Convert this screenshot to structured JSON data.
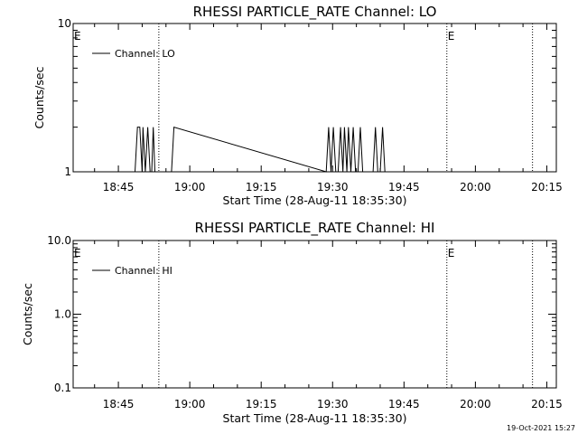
{
  "timestamp": "19-Oct-2021 15:27",
  "chart_data": [
    {
      "type": "line",
      "title": "RHESSI PARTICLE_RATE Channel: LO",
      "xlabel": "Start Time (28-Aug-11 18:35:30)",
      "ylabel": "Counts/sec",
      "yscale": "log",
      "ylim": [
        1,
        10
      ],
      "yticks": [
        {
          "v": 1,
          "label": "1"
        },
        {
          "v": 10,
          "label": "10"
        }
      ],
      "xlim": [
        "18:35:30",
        "20:17:00"
      ],
      "xticks": [
        "18:45",
        "19:00",
        "19:15",
        "19:30",
        "19:45",
        "20:00",
        "20:15"
      ],
      "event_markers": [
        {
          "time": "18:35:30",
          "label": "E"
        },
        {
          "time": "18:53:30",
          "label": ""
        },
        {
          "time": "19:54:00",
          "label": "E"
        },
        {
          "time": "20:12:00",
          "label": ""
        }
      ],
      "legend": {
        "position": "top-left",
        "entries": [
          "Channel: LO"
        ]
      },
      "series": [
        {
          "name": "Channel: LO",
          "color": "#000000",
          "points": [
            [
              "18:48:30",
              1
            ],
            [
              "18:49:00",
              2
            ],
            [
              "18:49:30",
              2
            ],
            [
              "18:50:00",
              1
            ],
            [
              "18:50:10",
              2
            ],
            [
              "18:50:40",
              1
            ],
            [
              "18:51:10",
              2
            ],
            [
              "18:51:40",
              1
            ],
            [
              "18:52:00",
              1
            ],
            [
              "18:52:20",
              2
            ],
            [
              "18:52:40",
              1
            ],
            [
              "18:56:10",
              1
            ],
            [
              "18:56:40",
              2
            ],
            [
              "19:28:40",
              1
            ],
            [
              "19:29:10",
              2
            ],
            [
              "19:29:40",
              1
            ],
            [
              "19:30:10",
              2
            ],
            [
              "19:30:40",
              1
            ],
            [
              "19:31:10",
              1
            ],
            [
              "19:31:40",
              2
            ],
            [
              "19:32:10",
              1
            ],
            [
              "19:32:30",
              2
            ],
            [
              "19:33:00",
              1
            ],
            [
              "19:33:20",
              2
            ],
            [
              "19:33:50",
              1
            ],
            [
              "19:34:20",
              2
            ],
            [
              "19:34:50",
              1
            ],
            [
              "19:35:20",
              1
            ],
            [
              "19:35:50",
              2
            ],
            [
              "19:36:20",
              1
            ],
            [
              "19:38:30",
              1
            ],
            [
              "19:39:00",
              2
            ],
            [
              "19:39:30",
              1
            ],
            [
              "19:40:00",
              1
            ],
            [
              "19:40:30",
              2
            ],
            [
              "19:41:00",
              1
            ]
          ]
        }
      ]
    },
    {
      "type": "line",
      "title": "RHESSI PARTICLE_RATE Channel: HI",
      "xlabel": "Start Time (28-Aug-11 18:35:30)",
      "ylabel": "Counts/sec",
      "yscale": "log",
      "ylim": [
        0.1,
        10
      ],
      "yticks": [
        {
          "v": 0.1,
          "label": "0.1"
        },
        {
          "v": 1,
          "label": "1.0"
        },
        {
          "v": 10,
          "label": "10.0"
        }
      ],
      "xlim": [
        "18:35:30",
        "20:17:00"
      ],
      "xticks": [
        "18:45",
        "19:00",
        "19:15",
        "19:30",
        "19:45",
        "20:00",
        "20:15"
      ],
      "event_markers": [
        {
          "time": "18:35:30",
          "label": "E"
        },
        {
          "time": "18:53:30",
          "label": ""
        },
        {
          "time": "19:54:00",
          "label": "E"
        },
        {
          "time": "20:12:00",
          "label": ""
        }
      ],
      "legend": {
        "position": "top-left",
        "entries": [
          "Channel: HI"
        ]
      },
      "series": [
        {
          "name": "Channel: HI",
          "color": "#000000",
          "points": []
        }
      ]
    }
  ]
}
